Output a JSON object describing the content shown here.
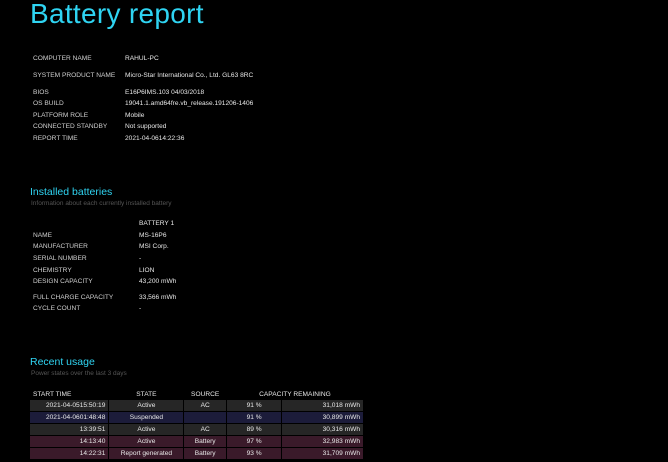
{
  "title": "Battery report",
  "system": [
    {
      "key": "COMPUTER NAME",
      "value": "RAHUL-PC"
    },
    {
      "key": "SYSTEM PRODUCT NAME",
      "value": "Micro-Star International Co., Ltd. GL63 8RC"
    },
    {
      "key": "BIOS",
      "value": "E16P6IMS.103 04/03/2018"
    },
    {
      "key": "OS BUILD",
      "value": "19041.1.amd64fre.vb_release.191206-1406"
    },
    {
      "key": "PLATFORM ROLE",
      "value": "Mobile"
    },
    {
      "key": "CONNECTED STANDBY",
      "value": "Not supported"
    },
    {
      "key": "REPORT TIME",
      "value": "2021-04-0614:22:36"
    }
  ],
  "installed": {
    "title": "Installed batteries",
    "subtitle": "Information about each currently installed battery",
    "column": "BATTERY 1",
    "rows": [
      {
        "key": "NAME",
        "value": "MS-16P6"
      },
      {
        "key": "MANUFACTURER",
        "value": "MSI Corp."
      },
      {
        "key": "SERIAL NUMBER",
        "value": "-"
      },
      {
        "key": "CHEMISTRY",
        "value": "LION"
      },
      {
        "key": "DESIGN CAPACITY",
        "value": "43,200 mWh"
      },
      {
        "key": "FULL CHARGE CAPACITY",
        "value": "33,566 mWh"
      },
      {
        "key": "CYCLE COUNT",
        "value": "-"
      }
    ]
  },
  "recent": {
    "title": "Recent usage",
    "subtitle": "Power states over the last 3 days",
    "headers": {
      "start": "START TIME",
      "state": "STATE",
      "source": "SOURCE",
      "capacity": "CAPACITY REMAINING"
    },
    "rows": [
      {
        "start": "2021-04-0515:50:19",
        "state": "Active",
        "source": "AC",
        "pct": "91 %",
        "mwh": "31,018 mWh",
        "kind": "ac"
      },
      {
        "start": "2021-04-0601:48:48",
        "state": "Suspended",
        "source": "",
        "pct": "91 %",
        "mwh": "30,899 mWh",
        "kind": "susp"
      },
      {
        "start": "13:39:51",
        "state": "Active",
        "source": "AC",
        "pct": "89 %",
        "mwh": "30,316 mWh",
        "kind": "ac"
      },
      {
        "start": "14:13:40",
        "state": "Active",
        "source": "Battery",
        "pct": "97 %",
        "mwh": "32,983 mWh",
        "kind": "batt"
      },
      {
        "start": "14:22:31",
        "state": "Report generated",
        "source": "Battery",
        "pct": "93 %",
        "mwh": "31,709 mWh",
        "kind": "batt"
      }
    ]
  }
}
